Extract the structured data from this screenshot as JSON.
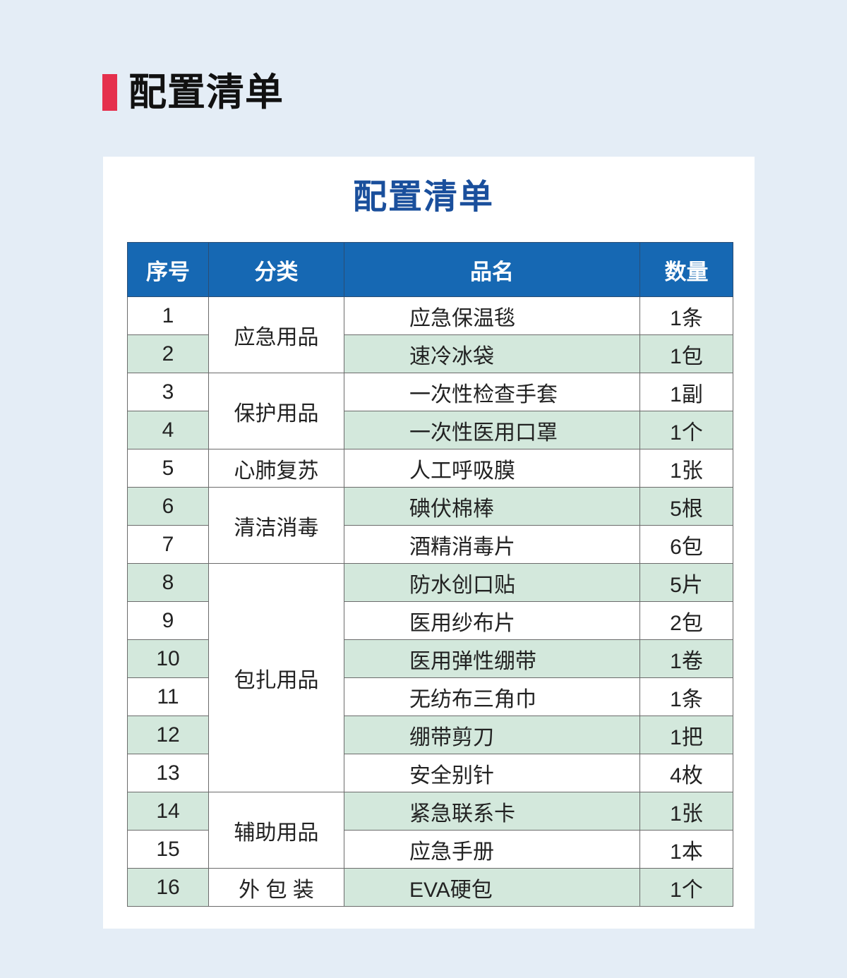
{
  "heading": "配置清单",
  "card_title": "配置清单",
  "colors": {
    "accent_red": "#e5304d",
    "header_blue": "#1668b3",
    "title_blue": "#1a4f9c",
    "row_green": "#d3e8dc"
  },
  "table": {
    "headers": [
      "序号",
      "分类",
      "品名",
      "数量"
    ],
    "categories": [
      {
        "label": "应急用品",
        "rows": 2
      },
      {
        "label": "保护用品",
        "rows": 2
      },
      {
        "label": "心肺复苏",
        "rows": 1
      },
      {
        "label": "清洁消毒",
        "rows": 2
      },
      {
        "label": "包扎用品",
        "rows": 6
      },
      {
        "label": "辅助用品",
        "rows": 2
      },
      {
        "label": "外 包 装",
        "rows": 1
      }
    ],
    "rows": [
      {
        "no": "1",
        "name": "应急保温毯",
        "qty": "1条"
      },
      {
        "no": "2",
        "name": "速冷冰袋",
        "qty": "1包"
      },
      {
        "no": "3",
        "name": "一次性检查手套",
        "qty": "1副"
      },
      {
        "no": "4",
        "name": "一次性医用口罩",
        "qty": "1个"
      },
      {
        "no": "5",
        "name": "人工呼吸膜",
        "qty": "1张"
      },
      {
        "no": "6",
        "name": "碘伏棉棒",
        "qty": "5根"
      },
      {
        "no": "7",
        "name": "酒精消毒片",
        "qty": "6包"
      },
      {
        "no": "8",
        "name": "防水创口贴",
        "qty": "5片"
      },
      {
        "no": "9",
        "name": "医用纱布片",
        "qty": "2包"
      },
      {
        "no": "10",
        "name": "医用弹性绷带",
        "qty": "1卷"
      },
      {
        "no": "11",
        "name": "无纺布三角巾",
        "qty": "1条"
      },
      {
        "no": "12",
        "name": "绷带剪刀",
        "qty": "1把"
      },
      {
        "no": "13",
        "name": "安全别针",
        "qty": "4枚"
      },
      {
        "no": "14",
        "name": "紧急联系卡",
        "qty": "1张"
      },
      {
        "no": "15",
        "name": "应急手册",
        "qty": "1本"
      },
      {
        "no": "16",
        "name": "EVA硬包",
        "qty": "1个"
      }
    ]
  }
}
